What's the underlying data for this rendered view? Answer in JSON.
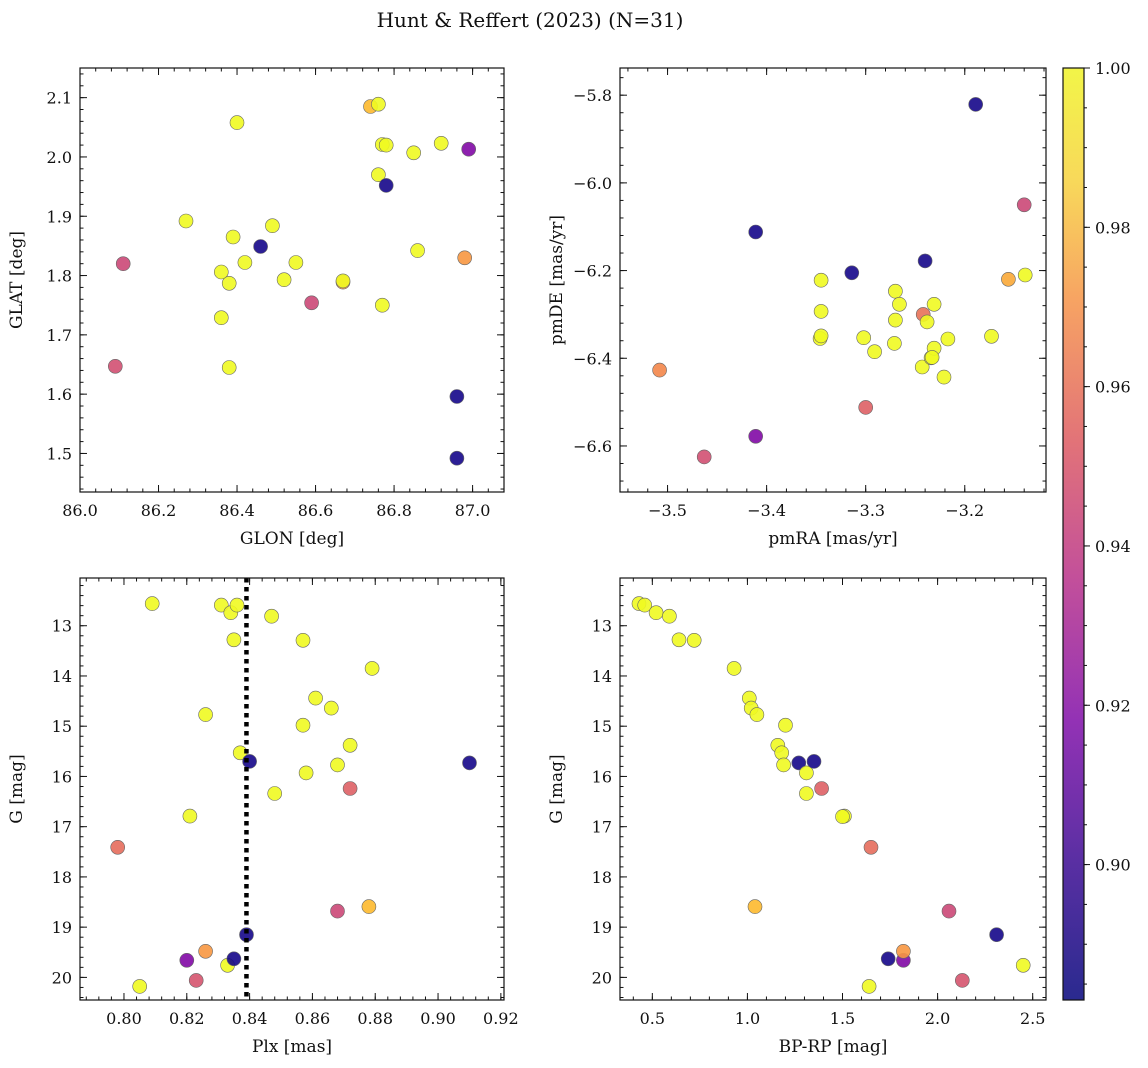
{
  "figure_title": "Hunt & Reffert (2023) (N=31)",
  "colorbar": {
    "ticks": [
      "1.00",
      "0.98",
      "0.96",
      "0.94",
      "0.92",
      "0.90"
    ],
    "tick_values": [
      1.0,
      0.98,
      0.96,
      0.94,
      0.92,
      0.9
    ],
    "vmin": 0.883,
    "vmax": 1.0,
    "cmap": "plasma"
  },
  "chart_data": [
    {
      "type": "scatter",
      "id": "glon-glat",
      "xlabel": "GLON [deg]",
      "ylabel": "GLAT [deg]",
      "xlim": [
        86.0,
        87.08
      ],
      "ylim": [
        1.435,
        2.15
      ],
      "xticks": [
        86.0,
        86.2,
        86.4,
        86.6,
        86.8,
        87.0
      ],
      "xticklabels": [
        "86.0",
        "86.2",
        "86.4",
        "86.6",
        "86.8",
        "87.0"
      ],
      "yticks": [
        1.5,
        1.6,
        1.7,
        1.8,
        1.9,
        2.0,
        2.1
      ],
      "yticklabels": [
        "1.5",
        "1.6",
        "1.7",
        "1.8",
        "1.9",
        "2.0",
        "2.1"
      ],
      "yinvert": false,
      "points": [
        [
          86.09,
          1.647,
          0.948
        ],
        [
          86.11,
          1.82,
          0.945
        ],
        [
          86.27,
          1.892,
          1.0
        ],
        [
          86.36,
          1.729,
          1.0
        ],
        [
          86.36,
          1.806,
          1.0
        ],
        [
          86.38,
          1.787,
          1.0
        ],
        [
          86.38,
          1.645,
          1.0
        ],
        [
          86.39,
          1.865,
          1.0
        ],
        [
          86.4,
          2.058,
          1.0
        ],
        [
          86.42,
          1.822,
          1.0
        ],
        [
          86.46,
          1.849,
          0.885
        ],
        [
          86.49,
          1.884,
          1.0
        ],
        [
          86.52,
          1.793,
          1.0
        ],
        [
          86.55,
          1.822,
          1.0
        ],
        [
          86.59,
          1.754,
          0.945
        ],
        [
          86.67,
          1.789,
          0.975
        ],
        [
          86.67,
          1.791,
          1.0
        ],
        [
          86.74,
          2.085,
          0.985
        ],
        [
          86.76,
          1.97,
          1.0
        ],
        [
          86.76,
          2.089,
          1.0
        ],
        [
          86.77,
          2.021,
          1.0
        ],
        [
          86.78,
          2.02,
          1.0
        ],
        [
          86.77,
          1.75,
          1.0
        ],
        [
          86.78,
          1.952,
          0.885
        ],
        [
          86.85,
          2.007,
          1.0
        ],
        [
          86.86,
          1.842,
          1.0
        ],
        [
          86.92,
          2.023,
          1.0
        ],
        [
          86.96,
          1.596,
          0.885
        ],
        [
          86.96,
          1.492,
          0.885
        ],
        [
          86.98,
          1.83,
          0.975
        ],
        [
          86.99,
          2.013,
          0.915
        ]
      ]
    },
    {
      "type": "scatter",
      "id": "pmra-pmde",
      "xlabel": "pmRA [mas/yr]",
      "ylabel": "pmDE [mas/yr]",
      "xlim": [
        -3.548,
        -3.118
      ],
      "ylim": [
        -6.705,
        -5.738
      ],
      "xticks": [
        -3.5,
        -3.4,
        -3.3,
        -3.2
      ],
      "xticklabels": [
        "−3.5",
        "−3.4",
        "−3.3",
        "−3.2"
      ],
      "yticks": [
        -6.6,
        -6.4,
        -6.2,
        -6.0,
        -5.8
      ],
      "yticklabels": [
        "−6.6",
        "−6.4",
        "−6.2",
        "−6.0",
        "−5.8"
      ],
      "yinvert": false,
      "points": [
        [
          -3.508,
          -6.427,
          0.97
        ],
        [
          -3.463,
          -6.625,
          0.948
        ],
        [
          -3.411,
          -6.112,
          0.885
        ],
        [
          -3.411,
          -6.578,
          0.915
        ],
        [
          -3.346,
          -6.355,
          1.0
        ],
        [
          -3.345,
          -6.222,
          1.0
        ],
        [
          -3.345,
          -6.293,
          1.0
        ],
        [
          -3.345,
          -6.349,
          1.0
        ],
        [
          -3.314,
          -6.205,
          0.885
        ],
        [
          -3.302,
          -6.353,
          1.0
        ],
        [
          -3.3,
          -6.512,
          0.955
        ],
        [
          -3.291,
          -6.385,
          1.0
        ],
        [
          -3.27,
          -6.247,
          1.0
        ],
        [
          -3.27,
          -6.313,
          1.0
        ],
        [
          -3.271,
          -6.366,
          1.0
        ],
        [
          -3.266,
          -6.277,
          1.0
        ],
        [
          -3.243,
          -6.42,
          1.0
        ],
        [
          -3.242,
          -6.3,
          0.962
        ],
        [
          -3.24,
          -6.178,
          0.885
        ],
        [
          -3.238,
          -6.317,
          1.0
        ],
        [
          -3.234,
          -6.399,
          1.0
        ],
        [
          -3.231,
          -6.277,
          1.0
        ],
        [
          -3.231,
          -6.377,
          1.0
        ],
        [
          -3.221,
          -6.443,
          1.0
        ],
        [
          -3.217,
          -6.356,
          1.0
        ],
        [
          -3.189,
          -5.821,
          0.885
        ],
        [
          -3.173,
          -6.35,
          1.0
        ],
        [
          -3.156,
          -6.22,
          0.98
        ],
        [
          -3.14,
          -6.05,
          0.945
        ],
        [
          -3.139,
          -6.21,
          1.0
        ],
        [
          -3.233,
          -6.398,
          1.0
        ]
      ]
    },
    {
      "type": "scatter",
      "id": "plx-g",
      "xlabel": "Plx [mas]",
      "ylabel": "G [mag]",
      "xlim": [
        0.786,
        0.921
      ],
      "ylim": [
        12.05,
        20.45
      ],
      "xticks": [
        0.8,
        0.82,
        0.84,
        0.86,
        0.88,
        0.9,
        0.92
      ],
      "xticklabels": [
        "0.80",
        "0.82",
        "0.84",
        "0.86",
        "0.88",
        "0.90",
        "0.92"
      ],
      "yticks": [
        13,
        14,
        15,
        16,
        17,
        18,
        19,
        20
      ],
      "yticklabels": [
        "13",
        "14",
        "15",
        "16",
        "17",
        "18",
        "19",
        "20"
      ],
      "yinvert": true,
      "vline": 0.839,
      "points": [
        [
          0.798,
          17.41,
          0.96
        ],
        [
          0.805,
          20.18,
          1.0
        ],
        [
          0.809,
          12.56,
          1.0
        ],
        [
          0.82,
          19.66,
          0.915
        ],
        [
          0.821,
          16.79,
          1.0
        ],
        [
          0.823,
          20.06,
          0.95
        ],
        [
          0.826,
          14.77,
          1.0
        ],
        [
          0.826,
          19.48,
          0.975
        ],
        [
          0.831,
          12.59,
          1.0
        ],
        [
          0.833,
          19.76,
          1.0
        ],
        [
          0.834,
          12.74,
          1.0
        ],
        [
          0.835,
          13.28,
          1.0
        ],
        [
          0.835,
          19.63,
          0.885
        ],
        [
          0.836,
          12.59,
          1.0
        ],
        [
          0.837,
          15.53,
          1.0
        ],
        [
          0.839,
          19.15,
          0.885
        ],
        [
          0.84,
          15.7,
          0.885
        ],
        [
          0.847,
          12.81,
          1.0
        ],
        [
          0.848,
          16.34,
          1.0
        ],
        [
          0.857,
          13.29,
          1.0
        ],
        [
          0.857,
          14.98,
          1.0
        ],
        [
          0.858,
          15.93,
          1.0
        ],
        [
          0.861,
          14.44,
          1.0
        ],
        [
          0.866,
          14.64,
          1.0
        ],
        [
          0.868,
          15.77,
          1.0
        ],
        [
          0.868,
          18.68,
          0.945
        ],
        [
          0.872,
          15.38,
          1.0
        ],
        [
          0.872,
          16.24,
          0.955
        ],
        [
          0.878,
          18.59,
          0.985
        ],
        [
          0.879,
          13.85,
          1.0
        ],
        [
          0.91,
          15.73,
          0.885
        ]
      ]
    },
    {
      "type": "scatter",
      "id": "bprp-g",
      "xlabel": "BP-RP [mag]",
      "ylabel": "G [mag]",
      "xlim": [
        0.33,
        2.57
      ],
      "ylim": [
        12.05,
        20.45
      ],
      "xticks": [
        0.5,
        1.0,
        1.5,
        2.0,
        2.5
      ],
      "xticklabels": [
        "0.5",
        "1.0",
        "1.5",
        "2.0",
        "2.5"
      ],
      "yticks": [
        13,
        14,
        15,
        16,
        17,
        18,
        19,
        20
      ],
      "yticklabels": [
        "13",
        "14",
        "15",
        "16",
        "17",
        "18",
        "19",
        "20"
      ],
      "yinvert": true,
      "points": [
        [
          0.43,
          12.56,
          1.0
        ],
        [
          0.46,
          12.59,
          1.0
        ],
        [
          0.52,
          12.74,
          1.0
        ],
        [
          0.59,
          12.81,
          1.0
        ],
        [
          0.64,
          13.28,
          1.0
        ],
        [
          0.72,
          13.29,
          1.0
        ],
        [
          0.93,
          13.85,
          1.0
        ],
        [
          1.01,
          14.44,
          1.0
        ],
        [
          1.02,
          14.64,
          1.0
        ],
        [
          1.05,
          14.77,
          1.0
        ],
        [
          1.04,
          18.59,
          0.985
        ],
        [
          1.16,
          15.38,
          1.0
        ],
        [
          1.18,
          15.53,
          1.0
        ],
        [
          1.19,
          15.77,
          1.0
        ],
        [
          1.2,
          14.98,
          1.0
        ],
        [
          1.27,
          15.73,
          0.885
        ],
        [
          1.31,
          15.93,
          1.0
        ],
        [
          1.31,
          16.34,
          1.0
        ],
        [
          1.35,
          15.7,
          0.885
        ],
        [
          1.39,
          16.24,
          0.955
        ],
        [
          1.51,
          16.79,
          1.0
        ],
        [
          1.64,
          20.18,
          1.0
        ],
        [
          1.65,
          17.41,
          0.96
        ],
        [
          1.74,
          19.63,
          0.885
        ],
        [
          1.82,
          19.66,
          0.915
        ],
        [
          1.82,
          19.48,
          0.975
        ],
        [
          2.06,
          18.68,
          0.945
        ],
        [
          2.13,
          20.06,
          0.95
        ],
        [
          2.31,
          19.15,
          0.885
        ],
        [
          2.45,
          19.76,
          1.0
        ],
        [
          1.5,
          16.8,
          1.0
        ]
      ]
    }
  ]
}
